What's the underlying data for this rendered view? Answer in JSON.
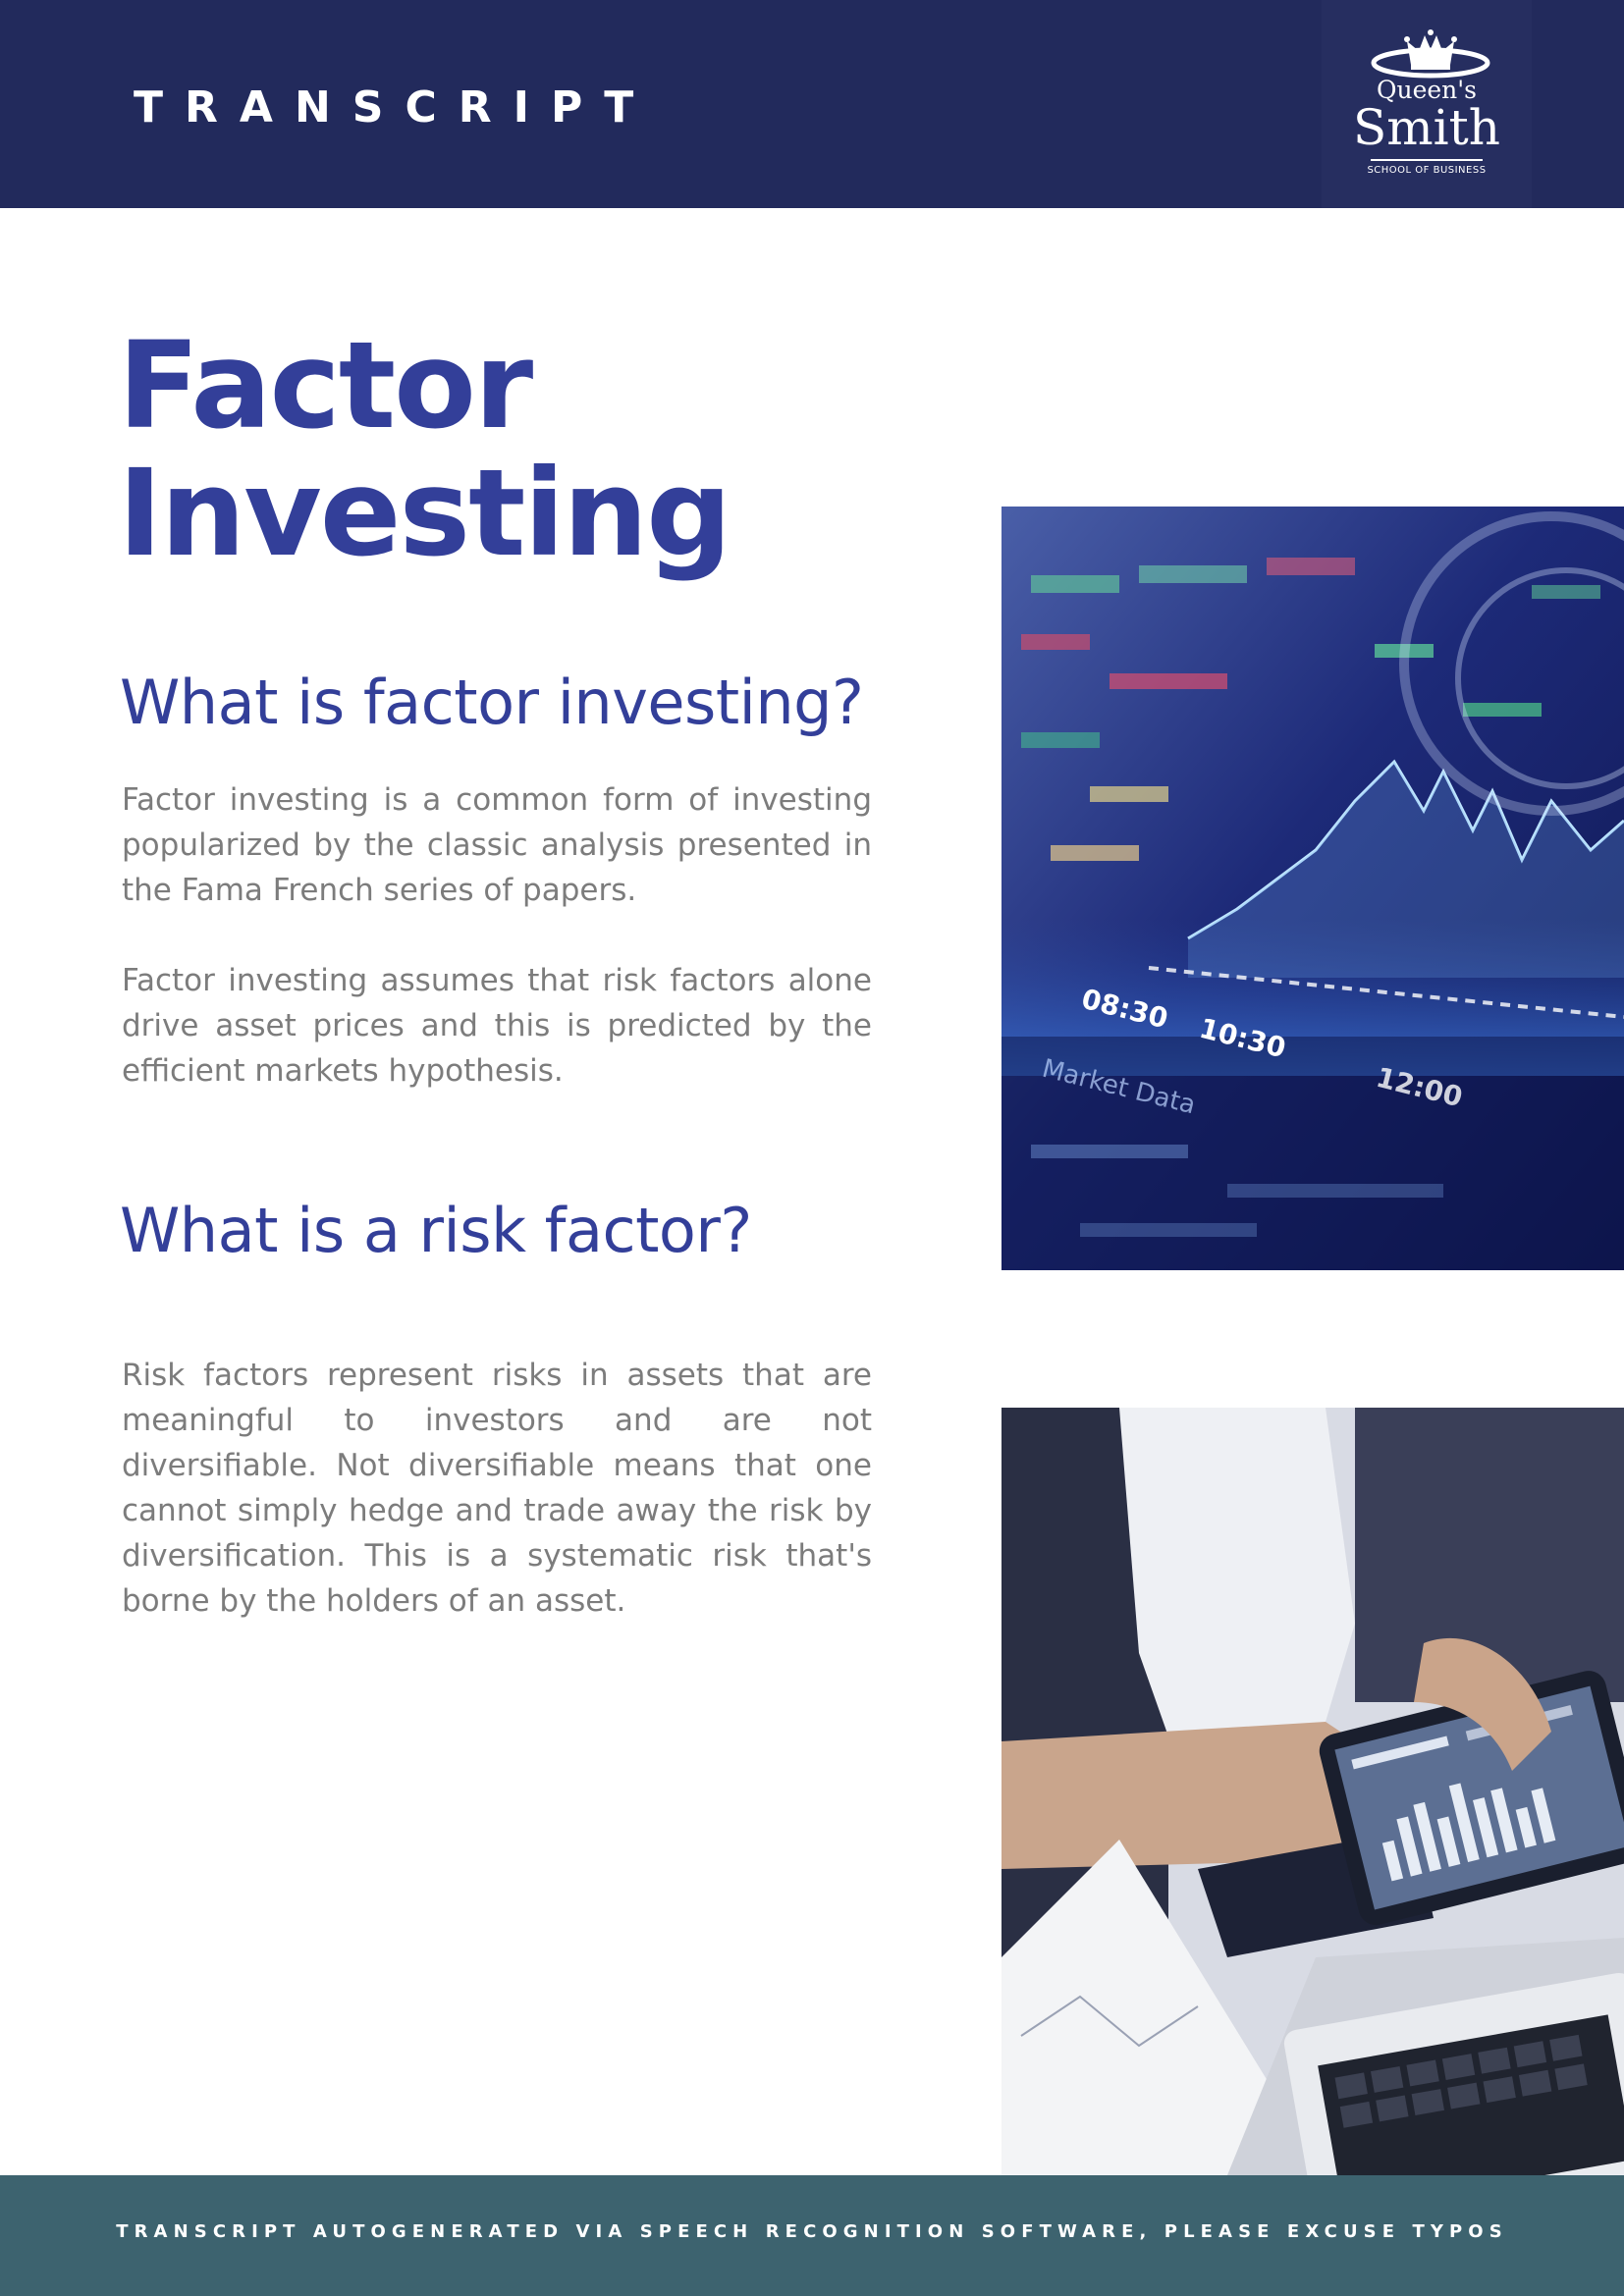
{
  "header": {
    "title": "TRANSCRIPT",
    "logo": {
      "line1": "Queen's",
      "line2": "Smith",
      "line3": "SCHOOL OF BUSINESS",
      "icon": "crown-icon"
    }
  },
  "title": {
    "line1": "Factor",
    "line2": "Investing"
  },
  "sections": [
    {
      "heading": "What is factor investing?",
      "paragraphs": [
        "Factor investing is a common form of investing popularized by the classic analysis presented in the Fama French series of papers.",
        "Factor investing assumes that risk factors alone drive asset prices and this is predicted by the efficient markets hypothesis."
      ]
    },
    {
      "heading": "What is a risk factor?",
      "paragraphs": [
        "Risk factors represent risks in assets that are meaningful to investors and are not diversifiable. Not diversifiable means that one cannot simply hedge and trade away the risk by diversification. This is a systematic risk that's borne by the holders of an asset."
      ]
    }
  ],
  "images": {
    "stock_board": {
      "readouts": [
        "08:30",
        "10:30",
        "12:00",
        "Market Data"
      ]
    }
  },
  "footer": {
    "text": "TRANSCRIPT AUTOGENERATED VIA SPEECH RECOGNITION SOFTWARE, PLEASE EXCUSE TYPOS"
  },
  "colors": {
    "header_bg": "#222a5c",
    "accent": "#333f99",
    "body_text": "#7c7c7c",
    "footer_bg": "#3d636f"
  }
}
